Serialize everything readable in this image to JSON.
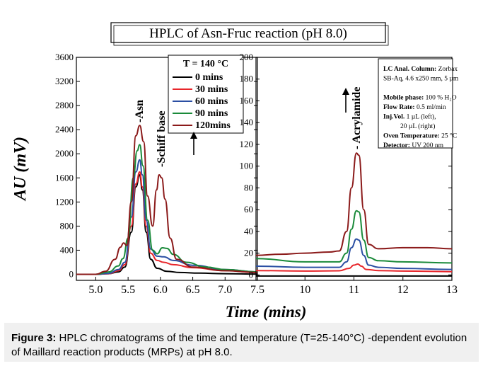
{
  "figure_title": "HPLC of Asn-Fruc reaction (pH 8.0)",
  "caption": {
    "label": "Figure 3:",
    "text": " HPLC chromatograms of the time and temperature (T=25-140°C) -dependent evolution of Maillard reaction products (MRPs) at pH 8.0."
  },
  "colors": {
    "c0": "#000000",
    "c30": "#e8262b",
    "c60": "#2b4fa3",
    "c90": "#1a8a3a",
    "c120": "#8b1a1a"
  },
  "chart_data": [
    {
      "type": "line",
      "panel": "left",
      "ylabel": "AU (mV)",
      "xlim": [
        4.7,
        7.5
      ],
      "ylim": [
        -100,
        3600
      ],
      "xticks": [
        "5.0",
        "5.5",
        "6.0",
        "6.5",
        "7.0",
        "7.5"
      ],
      "yticks": [
        "0",
        "400",
        "800",
        "1200",
        "1600",
        "2000",
        "2400",
        "2800",
        "3200",
        "3600"
      ],
      "legend_title": "T = 140 °C",
      "legend_position": "top-right",
      "annotations": [
        "-Asn",
        "-Schiff base"
      ],
      "series": [
        {
          "name": "0 mins",
          "color": "#000000",
          "x": [
            4.7,
            5.0,
            5.2,
            5.35,
            5.45,
            5.55,
            5.62,
            5.68,
            5.72,
            5.78,
            5.85,
            5.95,
            6.1,
            6.3,
            6.6,
            7.0,
            7.5
          ],
          "values": [
            0,
            0,
            10,
            40,
            120,
            700,
            1450,
            1650,
            1400,
            700,
            250,
            100,
            50,
            30,
            20,
            10,
            5
          ]
        },
        {
          "name": "30 mins",
          "color": "#e8262b",
          "x": [
            4.7,
            5.0,
            5.2,
            5.35,
            5.45,
            5.55,
            5.62,
            5.68,
            5.72,
            5.78,
            5.85,
            5.95,
            6.05,
            6.2,
            6.5,
            7.0,
            7.5
          ],
          "values": [
            0,
            0,
            10,
            60,
            160,
            800,
            1500,
            1700,
            1450,
            800,
            350,
            230,
            200,
            160,
            110,
            60,
            30
          ]
        },
        {
          "name": "60 mins",
          "color": "#2b4fa3",
          "x": [
            4.7,
            5.0,
            5.2,
            5.35,
            5.45,
            5.55,
            5.62,
            5.68,
            5.72,
            5.78,
            5.85,
            5.95,
            6.05,
            6.2,
            6.5,
            7.0,
            7.5
          ],
          "values": [
            0,
            0,
            15,
            80,
            200,
            950,
            1700,
            1900,
            1650,
            900,
            420,
            300,
            290,
            230,
            150,
            80,
            40
          ]
        },
        {
          "name": "90 mins",
          "color": "#1a8a3a",
          "x": [
            4.7,
            5.0,
            5.2,
            5.35,
            5.42,
            5.5,
            5.58,
            5.64,
            5.68,
            5.73,
            5.8,
            5.88,
            5.95,
            6.03,
            6.1,
            6.2,
            6.4,
            6.7,
            7.0,
            7.5
          ],
          "values": [
            0,
            0,
            40,
            140,
            260,
            600,
            1600,
            2050,
            2150,
            1800,
            900,
            400,
            340,
            440,
            430,
            330,
            200,
            120,
            80,
            40
          ]
        },
        {
          "name": "120mins",
          "color": "#8b1a1a",
          "x": [
            4.7,
            5.0,
            5.15,
            5.3,
            5.38,
            5.43,
            5.48,
            5.55,
            5.62,
            5.68,
            5.74,
            5.8,
            5.88,
            5.94,
            5.98,
            6.02,
            6.07,
            6.15,
            6.25,
            6.5,
            7.0,
            7.5
          ],
          "values": [
            0,
            0,
            50,
            250,
            450,
            520,
            480,
            1200,
            2300,
            2470,
            2200,
            1300,
            800,
            1400,
            1650,
            1600,
            1250,
            600,
            250,
            120,
            60,
            30
          ]
        }
      ]
    },
    {
      "type": "line",
      "panel": "right",
      "xlim": [
        9,
        13
      ],
      "ylim": [
        -5,
        200
      ],
      "xticks": [
        "10",
        "11",
        "12",
        "13"
      ],
      "yticks": [
        "0",
        "20",
        "40",
        "60",
        "80",
        "100",
        "120",
        "140",
        "160",
        "180",
        "200"
      ],
      "xlabel": "Time (mins)",
      "annotations": [
        "- Acrylamide"
      ],
      "info_box": [
        {
          "bold": "LC Anal. Column:",
          "text": " Zorbax"
        },
        {
          "bold": "",
          "text": "SB-Aq, 4.6 x250 mm, 5 µm"
        },
        {
          "bold": "",
          "text": ""
        },
        {
          "bold": "Mobile phase:",
          "text": " 100 % H₂O"
        },
        {
          "bold": "Flow Rate:",
          "text": " 0.5 ml/min"
        },
        {
          "bold": "Inj.Vol.",
          "text": " 1 µL (left),"
        },
        {
          "bold": "",
          "text": "20 µL (right)"
        },
        {
          "bold": "Oven Temperature:",
          "text": " 25 °C"
        },
        {
          "bold": "Detector:",
          "text": " UV 200 nm"
        }
      ],
      "series": [
        {
          "name": "0 mins",
          "color": "#000000",
          "x": [
            9,
            10,
            11,
            12,
            13
          ],
          "values": [
            -1,
            -1,
            -1,
            -1,
            -1
          ]
        },
        {
          "name": "30 mins",
          "color": "#e8262b",
          "x": [
            9,
            10,
            10.7,
            10.9,
            11.0,
            11.08,
            11.15,
            11.25,
            11.5,
            12,
            13
          ],
          "values": [
            4,
            3.5,
            3.8,
            6,
            9,
            10,
            8,
            5,
            4,
            3.5,
            3
          ]
        },
        {
          "name": "60 mins",
          "color": "#2b4fa3",
          "x": [
            9,
            10,
            10.7,
            10.85,
            10.95,
            11.05,
            11.1,
            11.2,
            11.3,
            11.5,
            12,
            13
          ],
          "values": [
            8,
            7,
            7,
            12,
            25,
            33,
            32,
            18,
            9,
            7,
            6,
            5
          ]
        },
        {
          "name": "90 mins",
          "color": "#1a8a3a",
          "x": [
            9,
            10,
            10.7,
            10.85,
            10.95,
            11.05,
            11.1,
            11.2,
            11.3,
            11.5,
            12,
            13
          ],
          "values": [
            15,
            12,
            12,
            20,
            42,
            59,
            58,
            32,
            16,
            13,
            12,
            11
          ]
        },
        {
          "name": "120mins",
          "color": "#8b1a1a",
          "x": [
            9,
            9.5,
            10,
            10.5,
            10.7,
            10.85,
            10.95,
            11.05,
            11.1,
            11.2,
            11.3,
            11.5,
            12,
            12.5,
            13
          ],
          "values": [
            18,
            19,
            20,
            21,
            22,
            40,
            80,
            112,
            110,
            60,
            28,
            24,
            25,
            25,
            24
          ]
        }
      ]
    }
  ]
}
